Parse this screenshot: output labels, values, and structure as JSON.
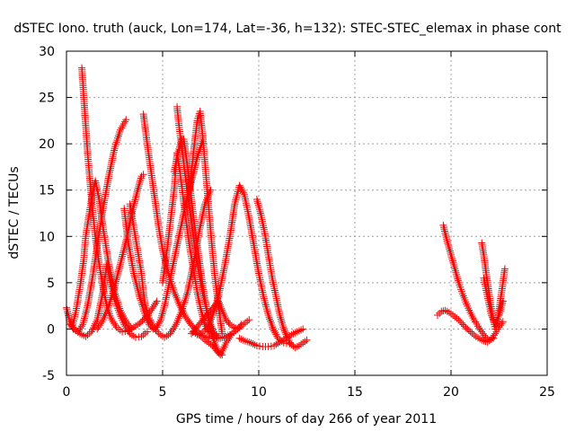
{
  "chart_data": {
    "type": "scatter",
    "title": "dSTEC Iono. truth (auck, Lon=174, Lat=-36, h=132): STEC-STEC_elemax in phase cont",
    "xlabel": "GPS time / hours of day 266 of year 2011",
    "ylabel": "dSTEC  / TECUs",
    "xlim": [
      0,
      25
    ],
    "ylim": [
      -5,
      30
    ],
    "xticks": [
      0,
      5,
      10,
      15,
      20,
      25
    ],
    "yticks": [
      -5,
      0,
      5,
      10,
      15,
      20,
      25,
      30
    ],
    "grid": true,
    "marker": "+",
    "color": "#ff0000",
    "series": [
      {
        "x": [
          0.0,
          0.15,
          0.35,
          0.6,
          0.85,
          1.1,
          1.35,
          1.6,
          1.9,
          2.2,
          2.5,
          2.8,
          3.1
        ],
        "y": [
          2.3,
          1.0,
          0.0,
          -0.3,
          0.5,
          2.5,
          5.5,
          9.0,
          13.0,
          16.5,
          19.5,
          21.5,
          22.6
        ]
      },
      {
        "x": [
          0.8,
          0.9,
          1.0,
          1.1,
          1.2,
          1.35,
          1.5,
          1.7,
          1.9,
          2.1,
          2.3,
          2.6,
          2.9,
          3.2,
          3.5,
          3.8,
          4.1,
          4.4,
          4.7
        ],
        "y": [
          28.2,
          25.0,
          22.0,
          19.0,
          16.5,
          13.0,
          10.0,
          7.0,
          4.5,
          2.5,
          1.2,
          0.2,
          -0.3,
          -0.2,
          0.2,
          0.6,
          1.2,
          2.0,
          3.0
        ]
      },
      {
        "x": [
          0.2,
          0.4,
          0.7,
          1.0,
          1.3,
          1.6,
          1.9,
          2.1,
          2.3,
          2.5,
          2.7,
          3.0,
          3.3,
          3.6,
          3.9,
          4.2
        ],
        "y": [
          0.5,
          0.0,
          -0.5,
          -0.8,
          -0.3,
          1.0,
          4.0,
          7.0,
          5.0,
          3.2,
          2.0,
          0.5,
          -0.5,
          -0.9,
          -0.8,
          -0.3
        ]
      },
      {
        "x": [
          0.3,
          0.5,
          0.7,
          0.9,
          1.0,
          1.15,
          1.3,
          1.5,
          1.7,
          1.9,
          2.2,
          2.5,
          2.8,
          3.1,
          3.4
        ],
        "y": [
          0.2,
          2.0,
          4.5,
          7.5,
          10.0,
          12.0,
          14.0,
          16.0,
          14.0,
          11.0,
          7.0,
          4.0,
          2.0,
          0.8,
          0.0
        ]
      },
      {
        "x": [
          1.6,
          1.9,
          2.2,
          2.5,
          2.8,
          3.1,
          3.4,
          3.7,
          3.9,
          4.0
        ],
        "y": [
          0.0,
          1.0,
          2.5,
          4.5,
          7.0,
          9.5,
          12.5,
          15.0,
          16.5,
          16.7
        ]
      },
      {
        "x": [
          3.3,
          3.5,
          3.7,
          3.9,
          4.0,
          4.1,
          4.3,
          4.5,
          4.8,
          5.1,
          5.4,
          5.7,
          6.0,
          6.3,
          6.6,
          6.9,
          7.2,
          7.5
        ],
        "y": [
          13.5,
          11.0,
          8.5,
          6.0,
          4.0,
          2.5,
          1.2,
          0.3,
          -0.5,
          -0.9,
          -0.5,
          0.5,
          2.0,
          4.0,
          7.0,
          10.5,
          13.5,
          15.0
        ]
      },
      {
        "x": [
          4.0,
          4.2,
          4.4,
          4.6,
          4.8,
          5.0,
          5.3,
          5.6,
          5.9,
          6.2,
          6.5,
          6.8,
          7.1,
          7.4
        ],
        "y": [
          23.2,
          20.0,
          17.0,
          14.0,
          11.0,
          8.5,
          6.0,
          4.0,
          2.5,
          1.3,
          0.4,
          -0.2,
          -0.7,
          -1.0
        ]
      },
      {
        "x": [
          3.0,
          3.2,
          3.5,
          3.8,
          4.1,
          4.3,
          4.5,
          4.7,
          4.9,
          5.1,
          5.3,
          5.6,
          5.9,
          6.2,
          6.5,
          6.8,
          7.1
        ],
        "y": [
          13.0,
          9.5,
          6.0,
          3.5,
          1.5,
          0.5,
          0.0,
          0.2,
          1.0,
          2.5,
          4.5,
          7.5,
          10.5,
          13.5,
          16.0,
          18.5,
          20.5
        ]
      },
      {
        "x": [
          5.0,
          5.2,
          5.4,
          5.6,
          5.75,
          5.9,
          6.05,
          6.2,
          6.4,
          6.6,
          6.8,
          7.0,
          7.2,
          7.4,
          7.6,
          7.8
        ],
        "y": [
          5.0,
          8.0,
          11.5,
          15.0,
          19.0,
          17.0,
          14.5,
          12.0,
          9.0,
          6.5,
          4.0,
          2.0,
          0.5,
          -0.3,
          -0.8,
          -1.0
        ]
      },
      {
        "x": [
          5.75,
          5.85,
          6.0,
          6.15,
          6.3,
          6.5,
          6.7,
          6.9,
          7.1,
          7.3,
          7.5,
          7.7,
          7.9
        ],
        "y": [
          24.0,
          22.0,
          19.5,
          17.0,
          14.5,
          11.5,
          8.5,
          6.0,
          3.8,
          2.0,
          0.5,
          -0.5,
          -1.0
        ]
      },
      {
        "x": [
          6.4,
          6.6,
          6.8,
          6.95,
          7.1,
          7.3,
          7.5,
          7.7,
          7.9,
          8.1
        ],
        "y": [
          15.0,
          19.0,
          22.5,
          23.5,
          20.5,
          15.5,
          10.5,
          6.0,
          2.5,
          -0.5
        ]
      },
      {
        "x": [
          5.6,
          5.8,
          6.0,
          6.1,
          6.3,
          6.5,
          6.7,
          6.9,
          7.1,
          7.3,
          7.5,
          7.7,
          7.9,
          8.1
        ],
        "y": [
          17.0,
          19.0,
          20.5,
          20.5,
          17.5,
          14.0,
          10.5,
          7.5,
          4.5,
          2.0,
          0.0,
          -1.5,
          -2.5,
          -2.8
        ]
      },
      {
        "x": [
          6.5,
          6.7,
          6.9,
          7.1,
          7.3,
          7.5,
          7.7,
          7.9,
          8.1,
          8.3,
          8.5,
          8.7,
          8.9,
          9.1
        ],
        "y": [
          -0.5,
          0.0,
          0.5,
          1.0,
          1.5,
          2.0,
          2.5,
          3.0,
          2.0,
          1.0,
          0.5,
          0.2,
          0.0,
          0.5
        ]
      },
      {
        "x": [
          6.8,
          7.0,
          7.2,
          7.4,
          7.6,
          7.8,
          8.0,
          8.3,
          8.6,
          8.9
        ],
        "y": [
          -0.5,
          -0.8,
          -1.2,
          -1.5,
          -1.8,
          -2.3,
          -2.8,
          -1.5,
          -0.5,
          0.0
        ]
      },
      {
        "x": [
          6.6,
          6.8,
          7.0,
          7.3,
          7.6,
          7.9,
          8.2,
          8.5,
          8.75,
          9.0,
          9.25,
          9.5,
          9.75,
          10.0,
          10.25,
          10.5,
          10.75,
          11.0,
          11.3,
          11.6
        ],
        "y": [
          -0.3,
          -0.6,
          -0.5,
          0.0,
          1.5,
          3.5,
          6.5,
          10.0,
          13.5,
          15.5,
          14.5,
          12.0,
          9.0,
          6.0,
          3.5,
          1.5,
          0.0,
          -1.0,
          -1.5,
          -1.6
        ]
      },
      {
        "x": [
          7.4,
          7.7,
          8.0,
          8.3,
          8.6,
          8.9,
          9.2,
          9.5
        ],
        "y": [
          0.5,
          -0.5,
          -1.0,
          -0.8,
          -0.5,
          0.0,
          0.5,
          1.0
        ]
      },
      {
        "x": [
          9.9,
          10.1,
          10.3,
          10.5,
          10.7,
          10.9,
          11.1,
          11.3,
          11.5,
          11.7,
          11.9,
          12.1,
          12.3,
          12.5
        ],
        "y": [
          14.0,
          12.5,
          10.5,
          8.0,
          5.5,
          3.5,
          1.5,
          0.0,
          -1.0,
          -1.7,
          -2.0,
          -1.8,
          -1.5,
          -1.2
        ]
      },
      {
        "x": [
          9.0,
          9.3,
          9.6,
          9.9,
          10.2,
          10.5,
          10.8,
          11.1,
          11.4,
          11.7,
          12.0,
          12.3
        ],
        "y": [
          -1.0,
          -1.3,
          -1.5,
          -1.8,
          -1.9,
          -1.9,
          -1.8,
          -1.4,
          -1.0,
          -0.6,
          -0.3,
          0.0
        ]
      },
      {
        "x": [
          19.3,
          19.5,
          19.7,
          19.9,
          20.1,
          20.4,
          20.7,
          21.0,
          21.3,
          21.6,
          21.9,
          22.1,
          22.3,
          22.5,
          22.7
        ],
        "y": [
          1.5,
          1.9,
          2.0,
          1.8,
          1.5,
          1.0,
          0.3,
          -0.3,
          -0.8,
          -1.2,
          -1.4,
          -1.1,
          -0.5,
          0.2,
          0.8
        ]
      },
      {
        "x": [
          19.6,
          19.8,
          20.0,
          20.2,
          20.4,
          20.6,
          20.8,
          21.0,
          21.2,
          21.4,
          21.6,
          21.8,
          22.0,
          22.2
        ],
        "y": [
          11.2,
          9.5,
          8.0,
          6.5,
          5.0,
          3.8,
          2.7,
          1.8,
          1.0,
          0.3,
          -0.3,
          -0.9,
          -1.2,
          -1.0
        ]
      },
      {
        "x": [
          21.6,
          21.7,
          21.8,
          21.9,
          22.0,
          22.1,
          22.2,
          22.3,
          22.4,
          22.5,
          22.6,
          22.7,
          22.8
        ],
        "y": [
          9.3,
          8.0,
          6.5,
          5.0,
          3.5,
          2.2,
          1.0,
          0.0,
          0.6,
          2.0,
          3.5,
          5.0,
          6.5
        ]
      },
      {
        "x": [
          21.7,
          21.9,
          22.1,
          22.3,
          22.5,
          22.7
        ],
        "y": [
          5.5,
          3.5,
          1.5,
          0.5,
          1.5,
          3.0
        ]
      }
    ]
  }
}
